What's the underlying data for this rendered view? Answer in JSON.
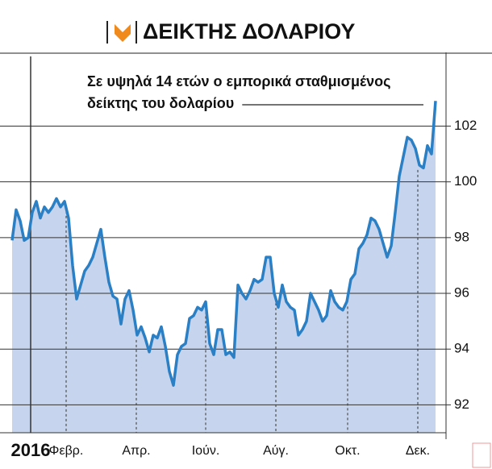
{
  "chart_data": {
    "type": "line",
    "title": "ΔΕΙΚΤΗΣ ΔΟΛΑΡΙΟΥ",
    "annotation": [
      "Σε υψηλά 14 ετών ο εμπορικά σταθμισμένος",
      "δείκτης του δολαρίου"
    ],
    "x": [
      -2.3,
      -1.8,
      -1.3,
      -0.8,
      -0.3,
      0.2,
      0.7,
      1.2,
      1.7,
      2.2,
      2.7,
      3.2,
      3.7,
      4.2,
      4.7,
      5.2,
      5.7,
      6.2,
      6.7,
      7.2,
      7.7,
      8.2,
      8.7,
      9.2,
      9.7,
      10.2,
      10.7,
      11.2,
      11.7,
      12.2,
      12.7,
      13.2,
      13.7,
      14.2,
      14.7,
      15.2,
      15.7,
      16.2,
      16.7,
      17.2,
      17.7,
      18.2,
      18.7,
      19.2,
      19.7,
      20.2,
      20.7,
      21.2,
      21.7,
      22.2,
      22.7,
      23.2,
      23.7,
      24.2,
      24.7,
      25.2,
      25.7,
      26.2,
      26.7,
      27.2,
      27.7,
      28.2,
      28.7,
      29.2,
      29.7,
      30.2,
      30.7,
      31.2,
      31.7,
      32.2,
      32.7,
      33.2,
      33.7,
      34.2,
      34.7,
      35.2,
      35.7,
      36.2,
      36.7,
      37.2,
      37.7,
      38.2,
      38.7,
      39.2,
      39.7,
      40.2,
      40.7,
      41.2,
      41.7,
      42.2,
      42.7,
      43.2,
      43.7,
      44.2,
      44.7,
      45.2,
      45.7,
      46.2,
      46.7,
      47.2,
      47.7,
      48.2,
      48.7,
      49.2,
      49.7,
      50.2
    ],
    "series": [
      {
        "name": "ΔΕΙΚΤΗΣ ΔΟΛΑΡΙΟΥ",
        "color": "#2b80c5",
        "fill": "#c6d4ee",
        "values": [
          97.9,
          99.0,
          98.6,
          97.9,
          98.0,
          98.9,
          99.3,
          98.7,
          99.1,
          98.9,
          99.1,
          99.4,
          99.1,
          99.3,
          98.7,
          97.0,
          95.8,
          96.3,
          96.8,
          97.0,
          97.3,
          97.8,
          98.3,
          97.3,
          96.4,
          95.9,
          95.8,
          94.9,
          95.8,
          96.1,
          95.4,
          94.5,
          94.8,
          94.4,
          93.9,
          94.5,
          94.4,
          94.8,
          94.1,
          93.2,
          92.7,
          93.8,
          94.1,
          94.2,
          95.1,
          95.2,
          95.5,
          95.4,
          95.7,
          94.2,
          93.8,
          94.7,
          94.7,
          93.8,
          93.9,
          93.7,
          96.3,
          96.0,
          95.8,
          96.1,
          96.5,
          96.4,
          96.5,
          97.3,
          97.3,
          96.0,
          95.5,
          96.3,
          95.7,
          95.5,
          95.4,
          94.5,
          94.7,
          95.0,
          96.0,
          95.7,
          95.4,
          95.0,
          95.2,
          96.1,
          95.7,
          95.5,
          95.4,
          95.7,
          96.5,
          96.7,
          97.6,
          97.8,
          98.1,
          98.7,
          98.6,
          98.3,
          97.8,
          97.3,
          97.7,
          98.9,
          100.2,
          100.9,
          101.6,
          101.5,
          101.2,
          100.6,
          100.5,
          101.3,
          101.0,
          102.9
        ]
      }
    ],
    "xlim": [
      -2.3,
      50.2
    ],
    "xticks": [
      {
        "value": 0,
        "label": "2016"
      },
      {
        "value": 4.4,
        "label": "Φεβρ."
      },
      {
        "value": 13.1,
        "label": "Απρ."
      },
      {
        "value": 21.7,
        "label": "Ιούν."
      },
      {
        "value": 30.4,
        "label": "Αύγ."
      },
      {
        "value": 39.3,
        "label": "Οκτ."
      },
      {
        "value": 48,
        "label": "Δεκ."
      }
    ],
    "ylim": [
      91,
      104.5
    ],
    "yticks": [
      92,
      94,
      96,
      98,
      100,
      102
    ],
    "grid": true
  }
}
